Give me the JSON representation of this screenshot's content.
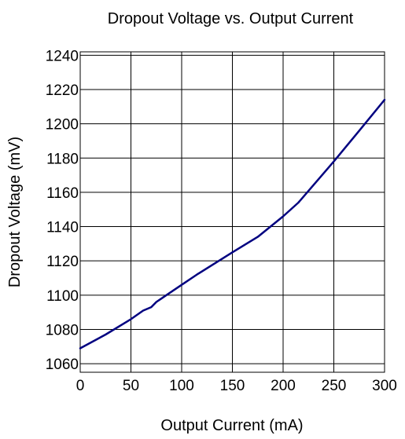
{
  "chart_data": {
    "type": "line",
    "title": "Dropout Voltage vs. Output Current",
    "xlabel": "Output Current (mA)",
    "ylabel": "Dropout Voltage (mV)",
    "xlim": [
      0,
      300
    ],
    "ylim": [
      1055,
      1242
    ],
    "grid": true,
    "x_ticks": [
      0,
      50,
      100,
      150,
      200,
      250,
      300
    ],
    "y_ticks": [
      1060,
      1080,
      1100,
      1120,
      1140,
      1160,
      1180,
      1200,
      1220,
      1240
    ],
    "line_color": "#000080",
    "series": [
      {
        "x": [
          0,
          25,
          50,
          62,
          70,
          75,
          80,
          85,
          100,
          115,
          150,
          175,
          200,
          215,
          250,
          275,
          300
        ],
        "values": [
          1069,
          1077,
          1086,
          1091,
          1093,
          1096,
          1098,
          1100,
          1106,
          1112,
          1125,
          1134,
          1146,
          1154,
          1178,
          1196,
          1214
        ]
      }
    ]
  }
}
